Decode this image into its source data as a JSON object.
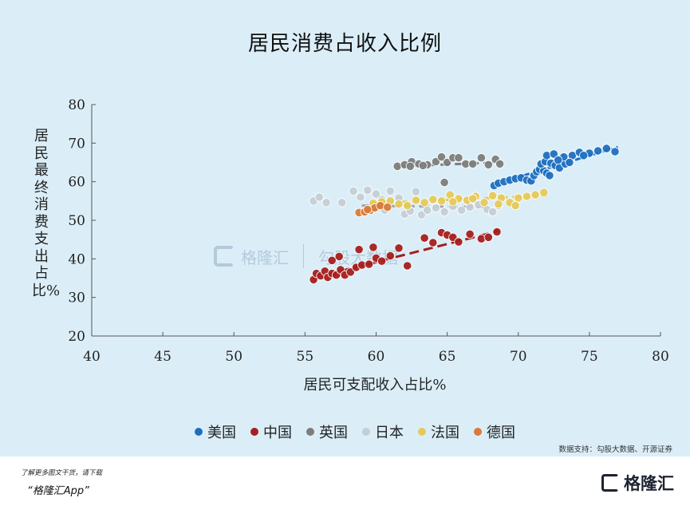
{
  "title": "居民消费占收入比例",
  "footer": {
    "line1": "了解更多图文干货，请下载",
    "line2": "“格隆汇App”",
    "brand": "格隆汇"
  },
  "source": "数据支持：勾股大数据、开源证券",
  "watermark": {
    "left": "格隆汇",
    "right": "勾股大数据"
  },
  "chart_data": {
    "type": "scatter",
    "title": "居民消费占收入比例",
    "xlabel": "居民可支配收入占比%",
    "ylabel": "居民最终消费支出占比%",
    "xlim": [
      40,
      80
    ],
    "ylim": [
      20,
      80
    ],
    "xticks": [
      40,
      45,
      50,
      55,
      60,
      65,
      70,
      75,
      80
    ],
    "yticks": [
      20,
      30,
      40,
      50,
      60,
      70,
      80
    ],
    "grid": false,
    "legend_position": "bottom",
    "series": [
      {
        "name": "美国",
        "color": "#1f6fbf",
        "trend": [
          [
            68.2,
            59.2
          ],
          [
            77.0,
            69.0
          ]
        ],
        "points": [
          [
            68.3,
            59.0
          ],
          [
            68.6,
            59.6
          ],
          [
            69.0,
            60.0
          ],
          [
            69.4,
            60.4
          ],
          [
            69.8,
            60.8
          ],
          [
            70.2,
            61.0
          ],
          [
            70.6,
            60.4
          ],
          [
            70.9,
            60.2
          ],
          [
            71.1,
            61.6
          ],
          [
            71.3,
            62.6
          ],
          [
            71.5,
            63.2
          ],
          [
            71.8,
            62.8
          ],
          [
            72.0,
            62.2
          ],
          [
            72.2,
            61.6
          ],
          [
            71.6,
            64.6
          ],
          [
            71.9,
            65.2
          ],
          [
            72.3,
            64.8
          ],
          [
            72.6,
            64.2
          ],
          [
            72.9,
            63.6
          ],
          [
            73.3,
            64.6
          ],
          [
            72.0,
            66.8
          ],
          [
            72.5,
            67.2
          ],
          [
            73.2,
            66.4
          ],
          [
            73.8,
            66.8
          ],
          [
            74.3,
            67.6
          ],
          [
            75.0,
            67.4
          ],
          [
            75.6,
            68.0
          ],
          [
            76.2,
            68.6
          ],
          [
            76.8,
            67.8
          ],
          [
            74.6,
            66.8
          ],
          [
            72.8,
            65.6
          ],
          [
            73.6,
            65.0
          ]
        ]
      },
      {
        "name": "中国",
        "color": "#a51e1e",
        "trend": [
          [
            55.5,
            35.0
          ],
          [
            68.6,
            47.2
          ]
        ],
        "points": [
          [
            55.6,
            34.6
          ],
          [
            55.8,
            36.2
          ],
          [
            56.1,
            35.6
          ],
          [
            56.4,
            36.8
          ],
          [
            56.6,
            35.2
          ],
          [
            56.9,
            36.2
          ],
          [
            57.2,
            35.8
          ],
          [
            57.5,
            37.2
          ],
          [
            57.8,
            35.8
          ],
          [
            58.2,
            36.6
          ],
          [
            58.6,
            37.8
          ],
          [
            59.0,
            38.4
          ],
          [
            59.5,
            38.6
          ],
          [
            60.0,
            40.2
          ],
          [
            60.4,
            39.4
          ],
          [
            61.0,
            40.8
          ],
          [
            61.6,
            42.8
          ],
          [
            62.2,
            38.2
          ],
          [
            63.4,
            45.4
          ],
          [
            64.0,
            44.2
          ],
          [
            64.6,
            46.8
          ],
          [
            65.0,
            46.2
          ],
          [
            65.4,
            45.6
          ],
          [
            65.8,
            44.4
          ],
          [
            66.6,
            46.4
          ],
          [
            67.4,
            45.2
          ],
          [
            67.9,
            45.6
          ],
          [
            68.5,
            47.0
          ],
          [
            58.8,
            42.4
          ],
          [
            59.8,
            43.0
          ],
          [
            57.4,
            40.6
          ],
          [
            56.9,
            39.6
          ]
        ]
      },
      {
        "name": "英国",
        "color": "#7d7d7d",
        "trend": [
          [
            61.5,
            64.0
          ],
          [
            68.8,
            65.0
          ]
        ],
        "points": [
          [
            61.5,
            64.0
          ],
          [
            62.0,
            64.4
          ],
          [
            62.5,
            65.2
          ],
          [
            63.0,
            64.6
          ],
          [
            63.6,
            64.4
          ],
          [
            64.2,
            65.2
          ],
          [
            64.6,
            66.4
          ],
          [
            65.0,
            65.0
          ],
          [
            65.4,
            66.2
          ],
          [
            65.8,
            66.2
          ],
          [
            66.3,
            64.6
          ],
          [
            66.8,
            64.6
          ],
          [
            67.4,
            66.2
          ],
          [
            67.9,
            64.4
          ],
          [
            68.4,
            65.8
          ],
          [
            68.7,
            64.6
          ],
          [
            64.8,
            59.8
          ],
          [
            62.4,
            64.0
          ],
          [
            63.3,
            64.2
          ]
        ]
      },
      {
        "name": "日本",
        "color": "#c5cdd4",
        "trend": [
          [
            59.0,
            53.8
          ],
          [
            68.0,
            53.4
          ]
        ],
        "points": [
          [
            55.6,
            55.0
          ],
          [
            56.0,
            56.0
          ],
          [
            56.5,
            54.6
          ],
          [
            57.6,
            54.6
          ],
          [
            58.4,
            57.6
          ],
          [
            58.9,
            56.0
          ],
          [
            59.4,
            57.8
          ],
          [
            60.0,
            56.8
          ],
          [
            60.6,
            52.6
          ],
          [
            61.0,
            57.6
          ],
          [
            61.6,
            55.8
          ],
          [
            62.0,
            51.6
          ],
          [
            62.4,
            52.4
          ],
          [
            62.8,
            57.4
          ],
          [
            63.2,
            51.4
          ],
          [
            63.6,
            52.6
          ],
          [
            64.2,
            53.2
          ],
          [
            64.8,
            52.2
          ],
          [
            65.4,
            53.6
          ],
          [
            66.0,
            52.6
          ],
          [
            66.6,
            53.4
          ],
          [
            67.2,
            54.0
          ],
          [
            67.8,
            52.8
          ],
          [
            68.2,
            52.2
          ],
          [
            68.6,
            53.8
          ],
          [
            60.4,
            55.4
          ]
        ]
      },
      {
        "name": "法国",
        "color": "#e6c95a",
        "trend": [
          [
            59.5,
            54.4
          ],
          [
            72.0,
            56.4
          ]
        ],
        "points": [
          [
            59.8,
            54.4
          ],
          [
            60.4,
            54.8
          ],
          [
            61.0,
            55.0
          ],
          [
            61.6,
            54.2
          ],
          [
            62.2,
            53.8
          ],
          [
            62.8,
            55.2
          ],
          [
            63.4,
            54.6
          ],
          [
            64.0,
            55.4
          ],
          [
            64.6,
            55.0
          ],
          [
            65.2,
            56.6
          ],
          [
            65.8,
            55.6
          ],
          [
            66.4,
            55.2
          ],
          [
            67.0,
            56.2
          ],
          [
            67.6,
            54.6
          ],
          [
            68.2,
            56.4
          ],
          [
            68.8,
            55.8
          ],
          [
            69.4,
            54.6
          ],
          [
            70.0,
            55.8
          ],
          [
            70.6,
            56.2
          ],
          [
            71.2,
            56.6
          ],
          [
            71.8,
            57.2
          ],
          [
            68.6,
            54.2
          ],
          [
            69.8,
            53.8
          ],
          [
            66.8,
            55.6
          ],
          [
            65.4,
            54.8
          ]
        ]
      },
      {
        "name": "德国",
        "color": "#d97a3a",
        "trend": [
          [
            58.8,
            52.0
          ],
          [
            60.8,
            53.8
          ]
        ],
        "points": [
          [
            58.8,
            52.0
          ],
          [
            59.2,
            52.2
          ],
          [
            59.6,
            52.6
          ],
          [
            59.9,
            53.2
          ],
          [
            60.3,
            53.8
          ],
          [
            60.8,
            53.4
          ],
          [
            59.4,
            52.8
          ]
        ]
      }
    ]
  }
}
